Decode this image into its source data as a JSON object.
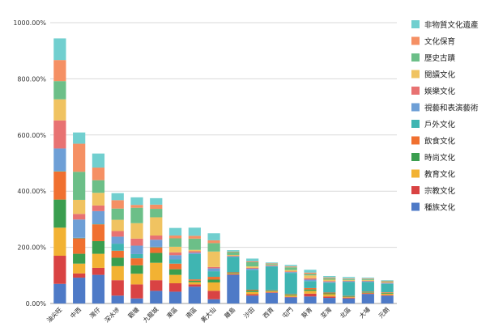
{
  "chart_data": {
    "type": "bar",
    "stacked": true,
    "title": "",
    "xlabel": "",
    "ylabel": "",
    "ylim": [
      0,
      1000
    ],
    "yticks": [
      "0.00%",
      "200.00%",
      "400.00%",
      "600.00%",
      "800.00%",
      "1000.00%"
    ],
    "ytick_values": [
      0,
      200,
      400,
      600,
      800,
      1000
    ],
    "categories": [
      "油尖旺",
      "中西",
      "灣仔",
      "深水埗",
      "觀塘",
      "九龍城",
      "東區",
      "南區",
      "黃大仙",
      "離島",
      "沙田",
      "西貢",
      "屯門",
      "葵青",
      "荃灣",
      "北區",
      "大埔",
      "元朗"
    ],
    "legend_position": "right",
    "series": [
      {
        "name": "種族文化",
        "color": "#4e7ac7",
        "values": [
          70,
          92,
          102,
          28,
          18,
          45,
          42,
          60,
          15,
          102,
          28,
          38,
          22,
          25,
          20,
          18,
          34,
          28
        ]
      },
      {
        "name": "宗教文化",
        "color": "#d94343",
        "values": [
          100,
          15,
          25,
          55,
          50,
          38,
          30,
          8,
          30,
          2,
          5,
          2,
          2,
          10,
          5,
          3,
          2,
          2
        ]
      },
      {
        "name": "教育文化",
        "color": "#f2b233",
        "values": [
          100,
          35,
          50,
          50,
          38,
          62,
          30,
          8,
          30,
          2,
          8,
          3,
          5,
          10,
          8,
          2,
          2,
          5
        ]
      },
      {
        "name": "時尚文化",
        "color": "#3a9e4f",
        "values": [
          100,
          35,
          45,
          30,
          30,
          35,
          20,
          5,
          10,
          2,
          5,
          2,
          3,
          5,
          3,
          2,
          2,
          3
        ]
      },
      {
        "name": "飲食文化",
        "color": "#f07030",
        "values": [
          100,
          55,
          60,
          25,
          25,
          20,
          20,
          5,
          10,
          3,
          3,
          2,
          2,
          5,
          3,
          2,
          2,
          2
        ]
      },
      {
        "name": "戶外文化",
        "color": "#3fb5b2",
        "values": [
          2,
          2,
          2,
          25,
          15,
          2,
          15,
          90,
          20,
          55,
          70,
          85,
          75,
          25,
          35,
          50,
          35,
          30
        ]
      },
      {
        "name": "視藝和表演藝術",
        "color": "#6e9fd6",
        "values": [
          80,
          65,
          45,
          25,
          30,
          25,
          15,
          5,
          10,
          2,
          5,
          2,
          3,
          5,
          3,
          2,
          2,
          2
        ]
      },
      {
        "name": "娛樂文化",
        "color": "#e87272",
        "values": [
          100,
          20,
          20,
          20,
          25,
          15,
          10,
          5,
          5,
          2,
          3,
          2,
          2,
          5,
          3,
          2,
          2,
          2
        ]
      },
      {
        "name": "閱讀文化",
        "color": "#f0c361",
        "values": [
          75,
          50,
          45,
          40,
          55,
          65,
          20,
          5,
          55,
          3,
          5,
          2,
          5,
          10,
          5,
          3,
          3,
          2
        ]
      },
      {
        "name": "歷史古蹟",
        "color": "#6cbf88",
        "values": [
          65,
          100,
          45,
          40,
          55,
          30,
          30,
          40,
          30,
          10,
          15,
          3,
          10,
          5,
          5,
          3,
          3,
          3
        ]
      },
      {
        "name": "文化保育",
        "color": "#f59064",
        "values": [
          75,
          100,
          45,
          30,
          10,
          15,
          10,
          10,
          10,
          2,
          3,
          2,
          3,
          5,
          3,
          2,
          2,
          2
        ]
      },
      {
        "name": "非物質文化遺產",
        "color": "#71cfcf",
        "values": [
          77,
          40,
          50,
          25,
          27,
          23,
          27,
          29,
          25,
          5,
          10,
          3,
          5,
          10,
          5,
          5,
          3,
          2
        ]
      }
    ]
  }
}
